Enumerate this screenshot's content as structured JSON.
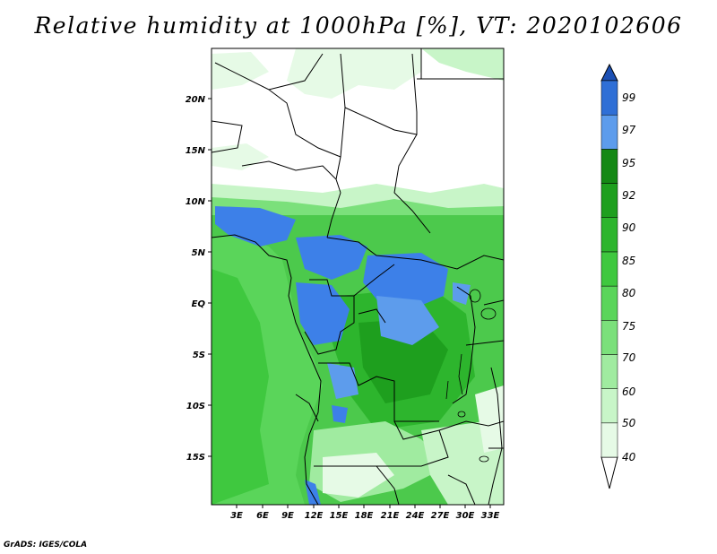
{
  "title": "Relative humidity at 1000hPa [%], VT: 2020102606",
  "credit": "GrADS: IGES/COLA",
  "map": {
    "lat_labels": [
      "20N",
      "15N",
      "10N",
      "5N",
      "EQ",
      "5S",
      "10S",
      "15S"
    ],
    "lon_labels": [
      "3E",
      "6E",
      "9E",
      "12E",
      "15E",
      "18E",
      "21E",
      "24E",
      "27E",
      "30E",
      "33E"
    ]
  },
  "colorbar": {
    "levels": [
      "40",
      "50",
      "60",
      "70",
      "75",
      "80",
      "85",
      "90",
      "92",
      "95",
      "97",
      "99"
    ],
    "colors": [
      "#ffffff",
      "#e6fae6",
      "#c8f5c8",
      "#a0eba0",
      "#7be07b",
      "#5ad55a",
      "#3fc83f",
      "#2db52d",
      "#1e9f1e",
      "#148814",
      "#5d9cec",
      "#2f6fd6",
      "#1c50b4"
    ]
  },
  "legend_colors": {
    "ocean_green": "#4cc94c",
    "land_mid": "#39b739",
    "blue_high": "#3d80e8"
  }
}
